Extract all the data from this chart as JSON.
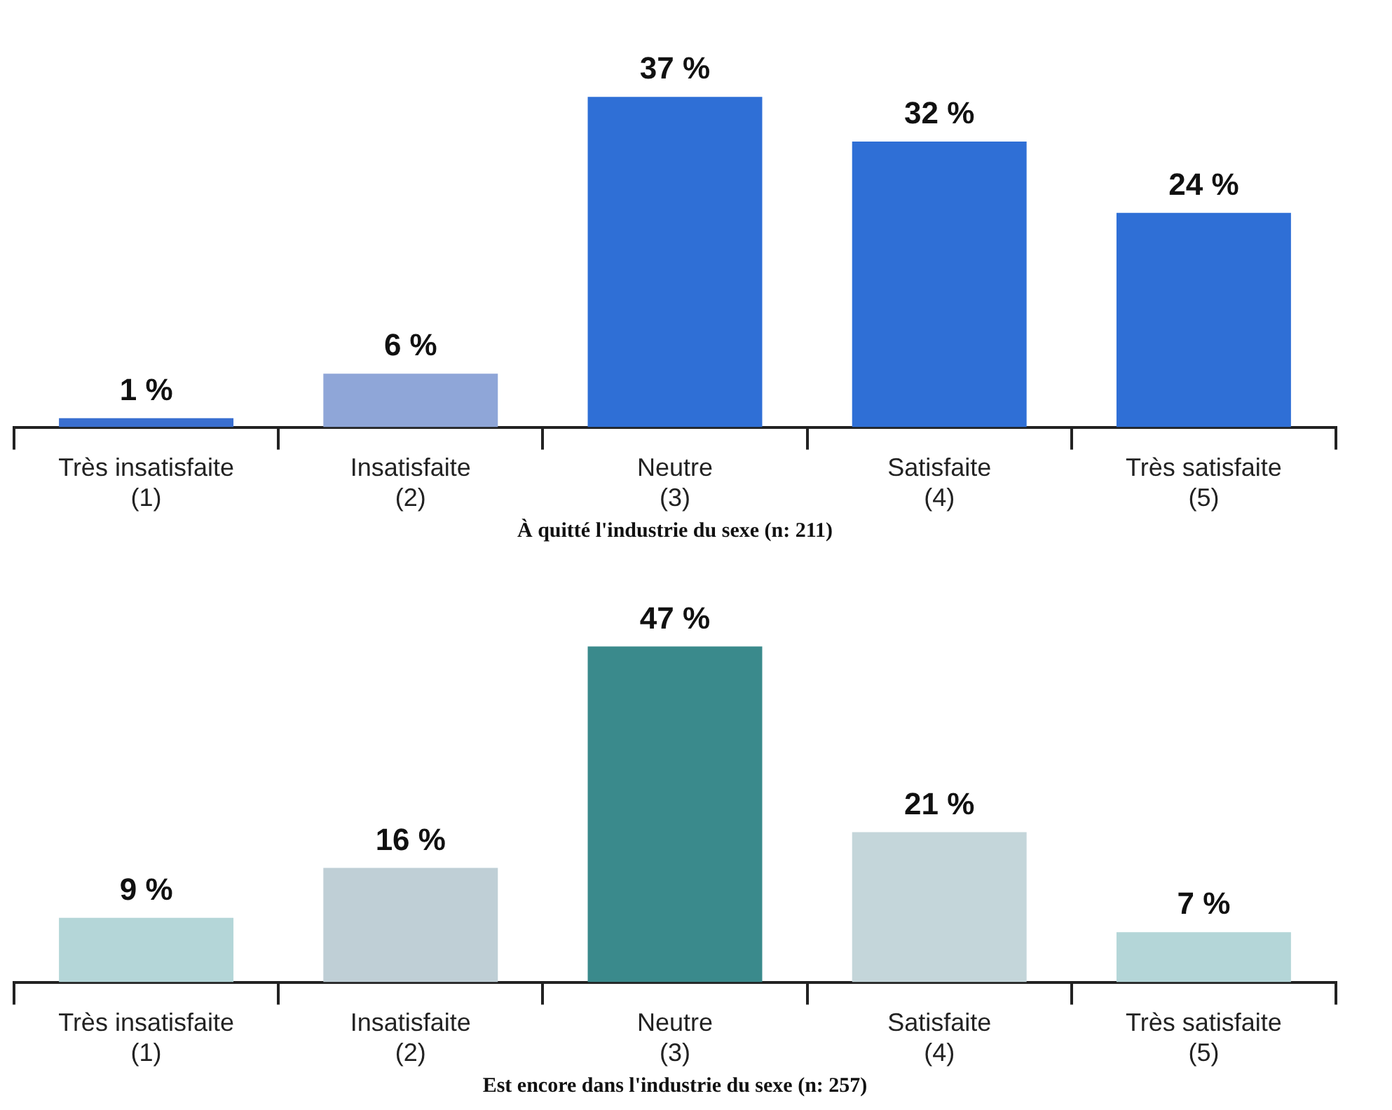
{
  "chart_data": [
    {
      "type": "bar",
      "xlabel": "À quitté l'industrie du sexe (n: 211)",
      "categories": [
        "Très insatisfaite\n(1)",
        "Insatisfaite\n(2)",
        "Neutre\n(3)",
        "Satisfaite\n(4)",
        "Très satisfaite\n(5)"
      ],
      "values": [
        1,
        6,
        37,
        32,
        24
      ],
      "colors": [
        "#3a6fd0",
        "#8fa6d8",
        "#2f6fd6",
        "#2f6fd6",
        "#2f6fd6"
      ],
      "data_labels": true,
      "value_labels": [
        "1 %",
        "6 %",
        "37 %",
        "32 %",
        "24 %"
      ]
    },
    {
      "type": "bar",
      "xlabel": "Est encore dans l'industrie du sexe (n: 257)",
      "categories": [
        "Très insatisfaite\n(1)",
        "Insatisfaite\n(2)",
        "Neutre\n(3)",
        "Satisfaite\n(4)",
        "Très satisfaite\n(5)"
      ],
      "values": [
        9,
        16,
        47,
        21,
        7
      ],
      "colors": [
        "#b4d6d8",
        "#bfcfd6",
        "#3a8a8c",
        "#c4d6da",
        "#b4d6d8"
      ],
      "data_labels": true,
      "value_labels": [
        "9 %",
        "16 %",
        "47 %",
        "21 %",
        "7 %"
      ]
    }
  ]
}
